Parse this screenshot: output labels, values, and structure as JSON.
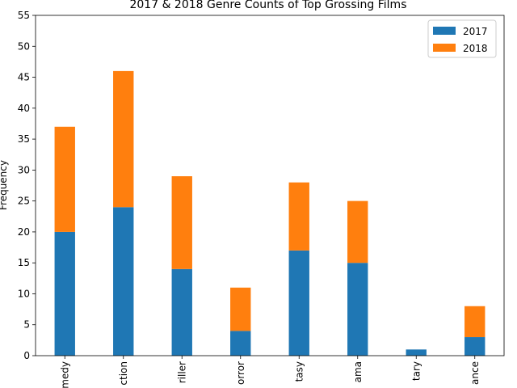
{
  "chart_data": {
    "type": "bar",
    "stacked": true,
    "title": "2017 & 2018 Genre Counts of Top Grossing Films",
    "xlabel": "",
    "ylabel": "Frequency",
    "ylim": [
      0,
      55
    ],
    "yticks": [
      0,
      5,
      10,
      15,
      20,
      25,
      30,
      35,
      40,
      45,
      50,
      55
    ],
    "ytick_labels": [
      "0",
      "5",
      "10",
      "15",
      "20",
      "25",
      "30",
      "35",
      "40",
      "45",
      "50",
      "55"
    ],
    "categories": [
      "Comedy",
      "Action",
      "Thriller",
      "Horror",
      "Fantasy",
      "Drama",
      "Documentary",
      "Romance"
    ],
    "category_labels_visible": [
      "medy",
      "ction",
      "riller",
      "orror",
      "tasy",
      "ama",
      "tary",
      "ance"
    ],
    "series": [
      {
        "name": "2017",
        "color": "#1f77b4",
        "values": [
          20,
          24,
          14,
          4,
          17,
          15,
          1,
          3
        ]
      },
      {
        "name": "2018",
        "color": "#ff7f0e",
        "values": [
          17,
          22,
          15,
          7,
          11,
          10,
          0,
          5
        ]
      }
    ],
    "legend_position": "top-right",
    "grid": false
  }
}
